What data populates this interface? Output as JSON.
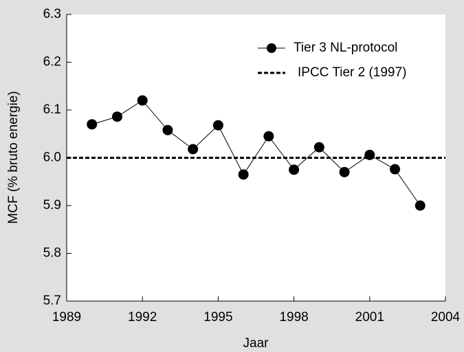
{
  "chart_data": {
    "type": "line",
    "x_label": "Jaar",
    "y_label": "MCF (% bruto energie)",
    "x": [
      1990,
      1991,
      1992,
      1993,
      1994,
      1995,
      1996,
      1997,
      1998,
      1999,
      2000,
      2001,
      2002,
      2003
    ],
    "series": [
      {
        "name": "Tier 3 NL-protocol",
        "color": "#000000",
        "marker": "circle",
        "values": [
          6.07,
          6.086,
          6.12,
          6.058,
          6.018,
          6.068,
          5.965,
          6.045,
          5.975,
          6.022,
          5.97,
          6.006,
          5.976,
          5.9
        ]
      },
      {
        "name": "IPCC Tier 2 (1997)",
        "color": "#000000",
        "dashed": true,
        "value": 6.0
      }
    ],
    "xlim": [
      1989,
      2004
    ],
    "xticks": [
      1989,
      1992,
      1995,
      1998,
      2001,
      2004
    ],
    "ylim": [
      5.7,
      6.3
    ],
    "yticks": [
      5.7,
      5.8,
      5.9,
      {
        "value": 6.0,
        "label": "6.0"
      },
      6.1,
      6.2,
      6.3
    ],
    "grid": false,
    "legend": "upper right"
  }
}
